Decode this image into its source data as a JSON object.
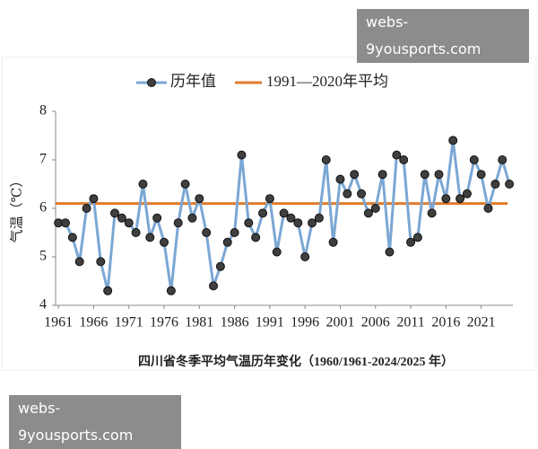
{
  "watermarks": [
    "webs-9yousports.com",
    "webs-9yousports.com"
  ],
  "chart_data": {
    "type": "line",
    "title": "四川省冬季平均气温历年变化（1960/1961-2024/2025 年）",
    "y_label": "气温（℃）",
    "x": [
      1961,
      1962,
      1963,
      1964,
      1965,
      1966,
      1967,
      1968,
      1969,
      1970,
      1971,
      1972,
      1973,
      1974,
      1975,
      1976,
      1977,
      1978,
      1979,
      1980,
      1981,
      1982,
      1983,
      1984,
      1985,
      1986,
      1987,
      1988,
      1989,
      1990,
      1991,
      1992,
      1993,
      1994,
      1995,
      1996,
      1997,
      1998,
      1999,
      2000,
      2001,
      2002,
      2003,
      2004,
      2005,
      2006,
      2007,
      2008,
      2009,
      2010,
      2011,
      2012,
      2013,
      2014,
      2015,
      2016,
      2017,
      2018,
      2019,
      2020,
      2021,
      2022,
      2023,
      2024,
      2025
    ],
    "series": [
      {
        "name": "历年值",
        "color": "#7ba7d4",
        "marker_color": "#3f3f3f",
        "values": [
          5.7,
          5.7,
          5.4,
          4.9,
          6.0,
          6.2,
          4.9,
          4.3,
          5.9,
          5.8,
          5.7,
          5.5,
          6.5,
          5.4,
          5.8,
          5.3,
          4.3,
          5.7,
          6.5,
          5.8,
          6.2,
          5.5,
          4.4,
          4.8,
          5.3,
          5.5,
          7.1,
          5.7,
          5.4,
          5.9,
          6.2,
          5.1,
          5.9,
          5.8,
          5.7,
          5.0,
          5.7,
          5.8,
          7.0,
          5.3,
          6.6,
          6.3,
          6.7,
          6.3,
          5.9,
          6.0,
          6.7,
          5.1,
          7.1,
          7.0,
          5.3,
          5.4,
          6.7,
          5.9,
          6.7,
          6.2,
          7.4,
          6.2,
          6.3,
          7.0,
          6.7,
          6.0,
          6.5,
          7.0,
          6.5
        ]
      }
    ],
    "reference_line": {
      "name": "1991—2020年平均",
      "color": "#e07b2c",
      "value": 6.1
    },
    "xlim": [
      1960.6,
      2025.5
    ],
    "xticks": [
      1961,
      1966,
      1971,
      1976,
      1981,
      1986,
      1991,
      1996,
      2001,
      2006,
      2011,
      2016,
      2021
    ],
    "ylim": [
      4,
      8
    ],
    "yticks": [
      4,
      5,
      6,
      7,
      8
    ],
    "legend": "top",
    "grid": false
  }
}
